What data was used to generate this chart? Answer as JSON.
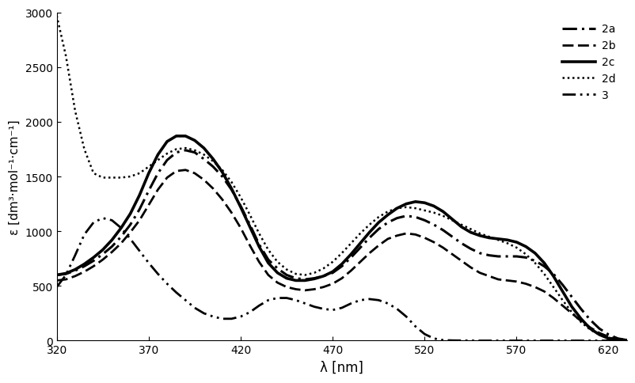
{
  "title": "",
  "xlabel": "λ [nm]",
  "ylabel": "ε [dm³·mol⁻¹·cm⁻¹]",
  "xlim": [
    320,
    630
  ],
  "ylim": [
    0,
    3000
  ],
  "yticks": [
    0,
    500,
    1000,
    1500,
    2000,
    2500,
    3000
  ],
  "xticks": [
    320,
    370,
    420,
    470,
    520,
    570,
    620
  ],
  "background_color": "#ffffff",
  "line_color": "#000000",
  "series": {
    "2a": {
      "linestyle": "dashdot_heavy",
      "linewidth": 2.2
    },
    "2b": {
      "linestyle": "dashed",
      "linewidth": 2.0
    },
    "2c": {
      "linestyle": "solid",
      "linewidth": 2.5
    },
    "2d": {
      "linestyle": "dotted",
      "linewidth": 1.8
    },
    "3": {
      "linestyle": "dashdotdot",
      "linewidth": 2.0
    }
  },
  "lambda_2a": [
    320,
    325,
    330,
    335,
    340,
    345,
    350,
    355,
    360,
    365,
    370,
    375,
    380,
    385,
    390,
    395,
    400,
    405,
    410,
    415,
    420,
    425,
    430,
    435,
    440,
    445,
    450,
    455,
    460,
    465,
    470,
    475,
    480,
    485,
    490,
    495,
    500,
    505,
    510,
    515,
    520,
    525,
    530,
    535,
    540,
    545,
    550,
    555,
    560,
    565,
    570,
    575,
    580,
    585,
    590,
    595,
    600,
    605,
    610,
    615,
    620,
    625,
    630
  ],
  "epsilon_2a": [
    600,
    610,
    640,
    680,
    730,
    790,
    860,
    950,
    1060,
    1200,
    1370,
    1530,
    1650,
    1720,
    1740,
    1720,
    1660,
    1590,
    1500,
    1380,
    1230,
    1060,
    880,
    740,
    660,
    600,
    570,
    560,
    570,
    590,
    620,
    680,
    760,
    850,
    940,
    1020,
    1080,
    1120,
    1140,
    1130,
    1100,
    1060,
    1010,
    950,
    890,
    840,
    800,
    780,
    770,
    770,
    770,
    760,
    730,
    680,
    610,
    510,
    400,
    290,
    190,
    110,
    55,
    20,
    5
  ],
  "lambda_2b": [
    320,
    325,
    330,
    335,
    340,
    345,
    350,
    355,
    360,
    365,
    370,
    375,
    380,
    385,
    390,
    395,
    400,
    405,
    410,
    415,
    420,
    425,
    430,
    435,
    440,
    445,
    450,
    455,
    460,
    465,
    470,
    475,
    480,
    485,
    490,
    495,
    500,
    505,
    510,
    515,
    520,
    525,
    530,
    535,
    540,
    545,
    550,
    555,
    560,
    565,
    570,
    575,
    580,
    585,
    590,
    595,
    600,
    605,
    610,
    615,
    620,
    625,
    630
  ],
  "epsilon_2b": [
    550,
    560,
    590,
    630,
    680,
    740,
    810,
    890,
    990,
    1100,
    1240,
    1380,
    1490,
    1550,
    1560,
    1530,
    1470,
    1390,
    1290,
    1170,
    1030,
    870,
    720,
    600,
    530,
    490,
    470,
    460,
    470,
    490,
    520,
    570,
    640,
    720,
    800,
    870,
    930,
    960,
    980,
    970,
    940,
    900,
    850,
    790,
    730,
    670,
    620,
    590,
    560,
    550,
    540,
    520,
    490,
    450,
    390,
    320,
    250,
    180,
    120,
    70,
    35,
    15,
    5
  ],
  "lambda_2c": [
    320,
    325,
    330,
    335,
    340,
    345,
    350,
    355,
    360,
    365,
    370,
    375,
    380,
    385,
    390,
    395,
    400,
    405,
    410,
    415,
    420,
    425,
    430,
    435,
    440,
    445,
    450,
    455,
    460,
    465,
    470,
    475,
    480,
    485,
    490,
    495,
    500,
    505,
    510,
    515,
    520,
    525,
    530,
    535,
    540,
    545,
    550,
    555,
    560,
    565,
    570,
    575,
    580,
    585,
    590,
    595,
    600,
    605,
    610,
    615,
    620,
    625,
    630
  ],
  "epsilon_2c": [
    600,
    615,
    650,
    700,
    760,
    830,
    920,
    1030,
    1160,
    1330,
    1530,
    1700,
    1820,
    1870,
    1870,
    1830,
    1760,
    1660,
    1540,
    1390,
    1220,
    1040,
    860,
    710,
    620,
    570,
    550,
    550,
    565,
    590,
    630,
    700,
    790,
    890,
    990,
    1080,
    1150,
    1210,
    1250,
    1270,
    1260,
    1230,
    1180,
    1110,
    1040,
    990,
    960,
    940,
    930,
    920,
    900,
    860,
    800,
    710,
    590,
    450,
    310,
    200,
    110,
    55,
    20,
    7,
    2
  ],
  "lambda_2d": [
    320,
    325,
    330,
    335,
    340,
    345,
    350,
    355,
    360,
    365,
    370,
    375,
    380,
    385,
    390,
    395,
    400,
    405,
    410,
    415,
    420,
    425,
    430,
    435,
    440,
    445,
    450,
    455,
    460,
    465,
    470,
    475,
    480,
    485,
    490,
    495,
    500,
    505,
    510,
    515,
    520,
    525,
    530,
    535,
    540,
    545,
    550,
    555,
    560,
    565,
    570,
    575,
    580,
    585,
    590,
    595,
    600,
    605,
    610,
    615,
    620,
    625,
    630
  ],
  "epsilon_2d": [
    2970,
    2600,
    2100,
    1750,
    1530,
    1490,
    1490,
    1490,
    1500,
    1530,
    1590,
    1650,
    1710,
    1750,
    1760,
    1740,
    1700,
    1640,
    1560,
    1450,
    1310,
    1150,
    980,
    830,
    720,
    650,
    610,
    600,
    620,
    660,
    720,
    800,
    890,
    980,
    1060,
    1130,
    1180,
    1210,
    1220,
    1210,
    1190,
    1170,
    1140,
    1100,
    1060,
    1020,
    980,
    950,
    920,
    890,
    850,
    790,
    710,
    610,
    490,
    370,
    260,
    170,
    100,
    55,
    28,
    13,
    5
  ],
  "lambda_3": [
    320,
    325,
    330,
    335,
    340,
    345,
    350,
    355,
    360,
    365,
    370,
    375,
    380,
    385,
    390,
    395,
    400,
    405,
    410,
    415,
    420,
    425,
    430,
    435,
    440,
    445,
    450,
    455,
    460,
    465,
    470,
    475,
    480,
    485,
    490,
    495,
    500,
    505,
    510,
    515,
    520,
    525,
    530,
    535,
    540,
    545,
    550,
    555,
    560,
    565,
    570,
    575,
    580,
    585,
    590,
    595,
    600,
    605,
    610,
    615,
    620,
    625,
    630
  ],
  "epsilon_3": [
    490,
    600,
    780,
    970,
    1080,
    1120,
    1100,
    1030,
    930,
    820,
    710,
    610,
    520,
    440,
    370,
    300,
    250,
    220,
    200,
    200,
    220,
    260,
    320,
    370,
    390,
    390,
    370,
    340,
    310,
    290,
    280,
    300,
    340,
    370,
    380,
    370,
    340,
    290,
    220,
    130,
    60,
    20,
    5,
    2,
    1,
    0,
    0,
    0,
    0,
    0,
    0,
    0,
    0,
    0,
    0,
    0,
    0,
    0,
    0,
    0,
    0,
    0,
    0
  ]
}
